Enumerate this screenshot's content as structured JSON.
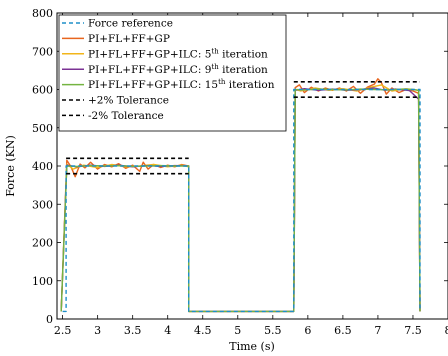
{
  "chart_data": {
    "type": "line",
    "xlabel": "Time (s)",
    "ylabel": "Force (KN)",
    "xlim": [
      2.42,
      8.0
    ],
    "ylim": [
      0,
      800
    ],
    "x_ticks": [
      "2.5",
      "3",
      "3.5",
      "4",
      "4.5",
      "5",
      "5.5",
      "6",
      "6.5",
      "7",
      "7.5",
      "8"
    ],
    "y_ticks": [
      "0",
      "100",
      "200",
      "300",
      "400",
      "500",
      "600",
      "700",
      "800"
    ],
    "legend": {
      "placement": "top-left",
      "entries": [
        {
          "text": "Force reference",
          "sup": "",
          "suffix": "",
          "color": "#1f8fc8",
          "dash": "4,3"
        },
        {
          "text": "PI+FL+FF+GP",
          "sup": "",
          "suffix": "",
          "color": "#e8651e",
          "dash": ""
        },
        {
          "text": "PI+FL+FF+GP+ILC: 5",
          "sup": "th",
          "suffix": " iteration",
          "color": "#f2b51a",
          "dash": ""
        },
        {
          "text": "PI+FL+FF+GP+ILC: 9",
          "sup": "th",
          "suffix": " iteration",
          "color": "#7b3294",
          "dash": ""
        },
        {
          "text": "PI+FL+FF+GP+ILC: 15",
          "sup": "th",
          "suffix": " iteration",
          "color": "#74b441",
          "dash": ""
        },
        {
          "text": "+2% Tolerance",
          "sup": "",
          "suffix": "",
          "color": "#000000",
          "dash": "4,3"
        },
        {
          "text": "-2% Tolerance",
          "sup": "",
          "suffix": "",
          "color": "#000000",
          "dash": "4,3"
        }
      ]
    },
    "series": [
      {
        "color": "#1f8fc8",
        "dash": "4,3",
        "x": [
          2.5,
          2.55,
          2.55,
          4.3,
          4.3,
          5.8,
          5.8,
          7.6,
          7.6
        ],
        "y": [
          20,
          20,
          400,
          400,
          20,
          20,
          600,
          600,
          20
        ]
      },
      {
        "color": "#e8651e",
        "dash": "",
        "x": [
          2.48,
          2.56,
          2.62,
          2.68,
          2.75,
          2.82,
          2.9,
          3.0,
          3.1,
          3.2,
          3.3,
          3.4,
          3.5,
          3.6,
          3.65,
          3.72,
          3.8,
          3.9,
          4.0,
          4.1,
          4.2,
          4.3,
          4.3,
          5.8,
          5.82,
          5.88,
          5.95,
          6.05,
          6.15,
          6.25,
          6.35,
          6.45,
          6.55,
          6.65,
          6.75,
          6.85,
          6.95,
          7.0,
          7.05,
          7.12,
          7.2,
          7.3,
          7.4,
          7.5,
          7.58,
          7.6
        ],
        "y": [
          20,
          415,
          398,
          372,
          405,
          395,
          410,
          392,
          404,
          398,
          406,
          394,
          402,
          386,
          410,
          392,
          404,
          396,
          402,
          398,
          404,
          400,
          20,
          20,
          605,
          612,
          592,
          606,
          596,
          604,
          598,
          604,
          596,
          608,
          590,
          606,
          614,
          628,
          618,
          588,
          604,
          592,
          600,
          596,
          590,
          20
        ]
      },
      {
        "color": "#f2b51a",
        "dash": "",
        "x": [
          2.48,
          2.56,
          2.65,
          2.8,
          3.0,
          3.2,
          3.4,
          3.6,
          3.8,
          4.0,
          4.2,
          4.3,
          4.3,
          5.8,
          5.82,
          5.9,
          6.1,
          6.3,
          6.5,
          6.7,
          6.9,
          7.05,
          7.2,
          7.4,
          7.58,
          7.6
        ],
        "y": [
          20,
          405,
          392,
          402,
          396,
          404,
          398,
          400,
          404,
          398,
          402,
          398,
          20,
          20,
          600,
          596,
          604,
          598,
          602,
          596,
          606,
          612,
          596,
          602,
          598,
          20
        ]
      },
      {
        "color": "#7b3294",
        "dash": "",
        "x": [
          2.48,
          2.56,
          2.7,
          2.9,
          3.1,
          3.3,
          3.5,
          3.7,
          3.9,
          4.1,
          4.3,
          4.3,
          5.8,
          5.82,
          5.95,
          6.15,
          6.35,
          6.55,
          6.75,
          6.95,
          7.1,
          7.25,
          7.45,
          7.58,
          7.6
        ],
        "y": [
          20,
          402,
          398,
          402,
          399,
          402,
          398,
          401,
          399,
          401,
          400,
          20,
          20,
          598,
          602,
          598,
          601,
          598,
          600,
          604,
          598,
          601,
          597,
          575,
          20
        ]
      },
      {
        "color": "#74b441",
        "dash": "",
        "x": [
          2.48,
          2.56,
          2.7,
          2.9,
          3.1,
          3.3,
          3.5,
          3.7,
          3.9,
          4.1,
          4.3,
          4.3,
          5.8,
          5.82,
          5.95,
          6.15,
          6.35,
          6.55,
          6.75,
          6.95,
          7.15,
          7.35,
          7.5,
          7.58,
          7.6
        ],
        "y": [
          20,
          400,
          399,
          401,
          400,
          401,
          399,
          400,
          401,
          400,
          400,
          20,
          20,
          600,
          599,
          601,
          600,
          599,
          601,
          600,
          599,
          601,
          600,
          598,
          20
        ]
      },
      {
        "color": "#000000",
        "dash": "4,3",
        "x": [
          2.55,
          4.3
        ],
        "y": [
          420,
          420
        ]
      },
      {
        "color": "#000000",
        "dash": "4,3",
        "x": [
          2.55,
          4.3
        ],
        "y": [
          380,
          380
        ]
      },
      {
        "color": "#000000",
        "dash": "4,3",
        "x": [
          5.8,
          7.6
        ],
        "y": [
          620,
          620
        ]
      },
      {
        "color": "#000000",
        "dash": "4,3",
        "x": [
          5.8,
          7.6
        ],
        "y": [
          580,
          580
        ]
      }
    ]
  }
}
